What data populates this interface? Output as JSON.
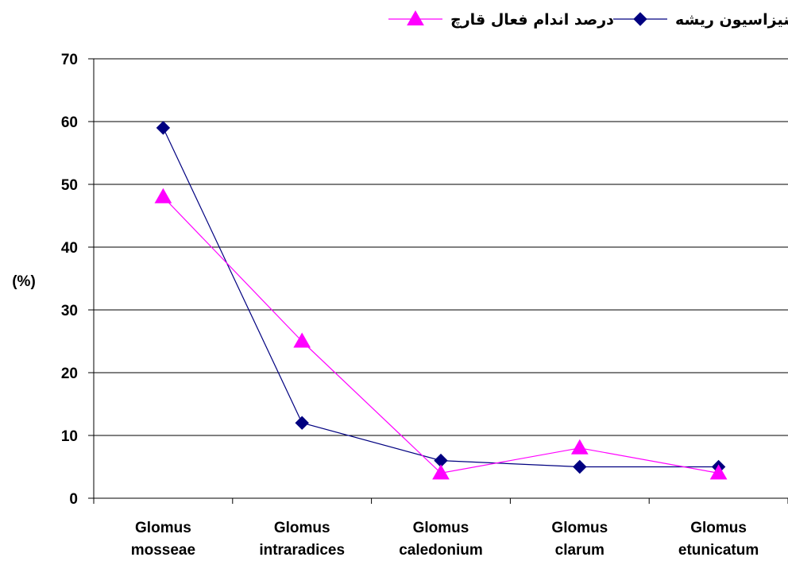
{
  "chart_data": {
    "type": "line",
    "title": "",
    "xlabel": "",
    "ylabel": "(%)",
    "ylim": [
      0,
      70
    ],
    "yticks": [
      0,
      10,
      20,
      30,
      40,
      50,
      60,
      70
    ],
    "grid": true,
    "legend_position": "top",
    "categories": [
      [
        "Glomus",
        "mosseae"
      ],
      [
        "Glomus",
        "intraradices"
      ],
      [
        "Glomus",
        "caledonium"
      ],
      [
        "Glomus",
        "clarum"
      ],
      [
        "Glomus",
        "etunicatum"
      ]
    ],
    "series": [
      {
        "name": "درصد کلنیزاسیون ریشه",
        "values": [
          59,
          12,
          6,
          5,
          5
        ],
        "color": "#000080",
        "marker": "diamond"
      },
      {
        "name": "درصد اندام فعال قارچ",
        "values": [
          48,
          25,
          4,
          8,
          4
        ],
        "color": "#ff00ff",
        "marker": "triangle"
      }
    ]
  }
}
